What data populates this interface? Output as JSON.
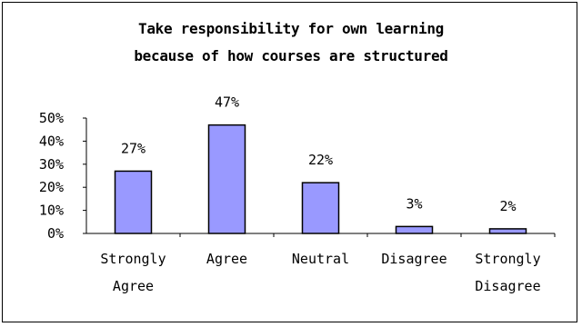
{
  "chart_data": {
    "type": "bar",
    "title_lines": [
      "Take responsibility for own learning",
      "because of how courses are structured"
    ],
    "categories": [
      [
        "Strongly",
        "Agree"
      ],
      [
        "Agree"
      ],
      [
        "Neutral"
      ],
      [
        "Disagree"
      ],
      [
        "Strongly",
        "Disagree"
      ]
    ],
    "values": [
      27,
      47,
      22,
      3,
      2
    ],
    "data_labels": [
      "27%",
      "47%",
      "22%",
      "3%",
      "2%"
    ],
    "y_ticks": [
      "0%",
      "10%",
      "20%",
      "30%",
      "40%",
      "50%"
    ],
    "ylim": [
      0,
      50
    ],
    "grid": false,
    "legend": "none",
    "bar_color": "#9999ff",
    "bar_stroke": "#000000"
  }
}
